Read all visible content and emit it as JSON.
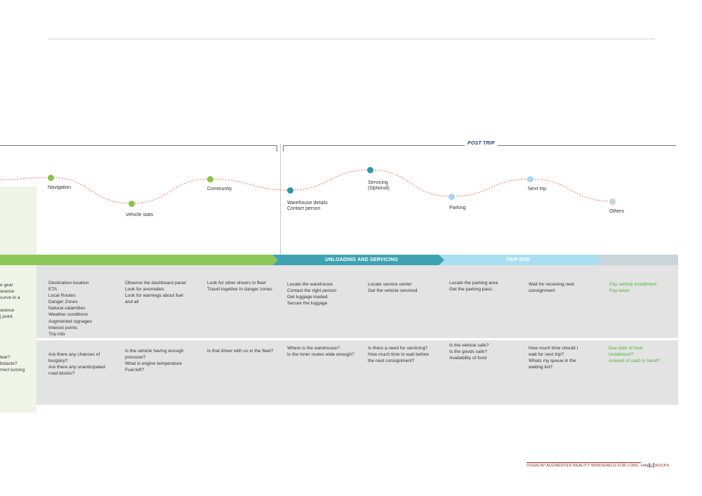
{
  "phase": {
    "post_trip": "POST TRIP"
  },
  "stages": {
    "unloading": "UNLOADING AND SERVICING",
    "trip_end": "TRIP END"
  },
  "colors": {
    "green_band": "#8dc75a",
    "teal_band": "#3fa2b2",
    "light_band": "#a9dff0",
    "grey_band": "#c8d5da",
    "panel": "#e3e3e3",
    "node_green": "#8bc34a",
    "node_teal": "#2f97a8",
    "node_light": "#a7d7ec",
    "node_grey": "#c3d3df",
    "curve": "#e07a6b"
  },
  "touchpoints": [
    {
      "id": "navigation",
      "label": "Navigation"
    },
    {
      "id": "vehicle_stats",
      "label": "Vehicle stats"
    },
    {
      "id": "community",
      "label": "Community"
    },
    {
      "id": "warehouse",
      "label": "Warehouse details\nContact person"
    },
    {
      "id": "servicing",
      "label": "Servicing\n(Optional)"
    },
    {
      "id": "parking",
      "label": "Parking"
    },
    {
      "id": "next_trip",
      "label": "Next trip"
    },
    {
      "id": "others",
      "label": "Others"
    }
  ],
  "actions": {
    "left_partial": "e gear\narance\ncurve in a\n\narance\nj point.",
    "navigation": "Destination location\nETA\nLocal Routes\nDanger Zones\nNatural calamities\nWeather conditions\nAugmented signages\nInterest points\nTrip info",
    "vehicle_stats": "Observe the dashboard panel\nLook for anomalies\nLook for warnings about fuel\nand all",
    "community": "Look for other drivers in fleet\nTravel together in danger zones",
    "warehouse": "Locate the warehouse\nContact the right person\nGet luggage loaded.\nSecure the luggage",
    "servicing": "Locate service center\nGet the vehicle serviced",
    "parking": "Locate the parking area\nGet the parking pass.",
    "next_trip": "Wait for receiving next\nconsignment",
    "others": "Pay vehicle installment\nPay taxes"
  },
  "questions": {
    "left_partial": "lear?\nbstacle?\nrrect turning",
    "navigation": "Are there any chances of\nburglary?\nAre there any unanticipated\nroad blocks?",
    "vehicle_stats": "Is the vehicle having enough\npressure?\nWhat is engine temperature\nFuel left?",
    "community": "Is that driver with us in the fleet?",
    "warehouse": "Where is the warehouse?\nIs the inner routes wide enough?",
    "servicing": "Is there a need for servicing?\nHow much time to wait before\nthe next consignment?",
    "parking": "Is the vehicle safe?\nIs the goods safe?\nAvailability of food",
    "next_trip": "How much time should I\nwait for next trip?\nWhats my queue in the\nwaiting list?",
    "others": "Due date of next\ninstallment?\nAmount of cash in hand?"
  },
  "footer": {
    "title": "OVERLAY AUGMENTED REALITY WINDSHIELD FOR LONG -HAUL TRUCKS",
    "page": "44"
  }
}
